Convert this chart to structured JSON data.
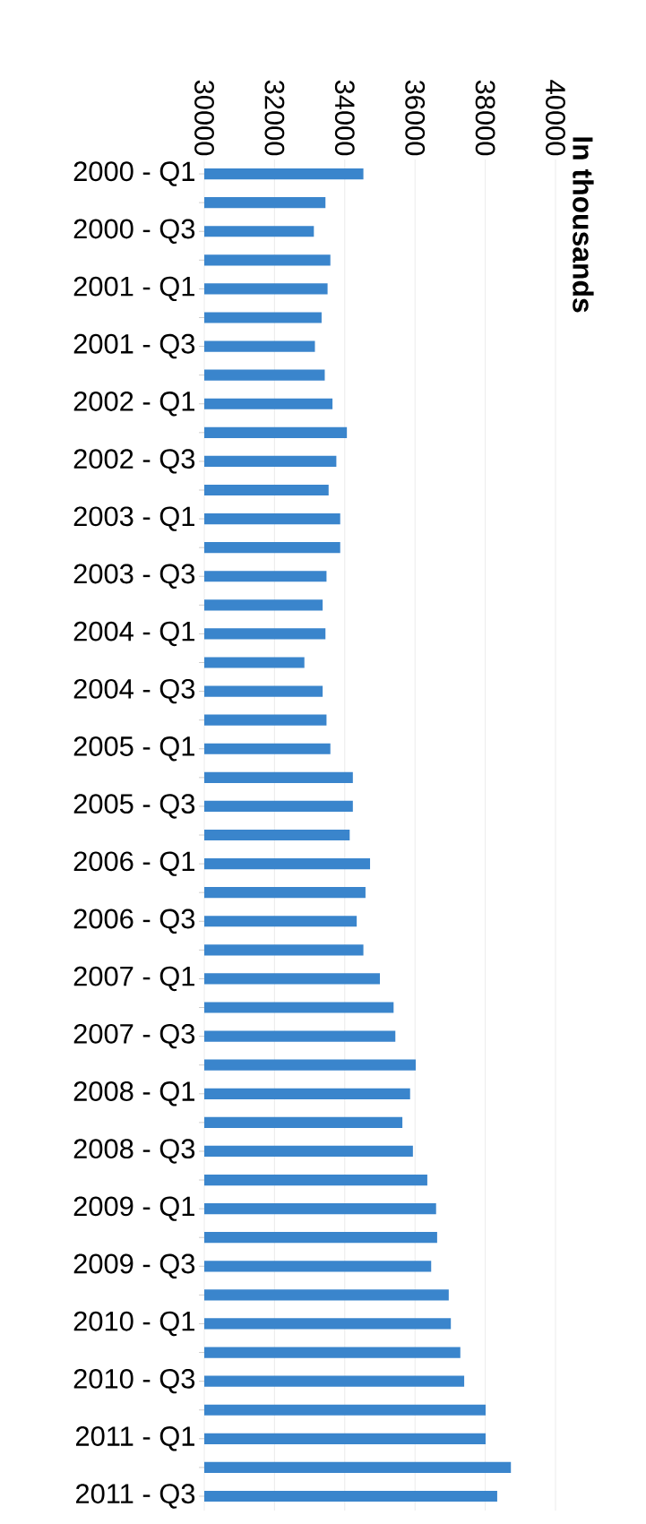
{
  "chart_data": {
    "type": "bar",
    "orientation": "horizontal",
    "annotations": [
      "In thousands"
    ],
    "categories": [
      "2000 - Q1",
      null,
      "2000 - Q3",
      null,
      "2001 - Q1",
      null,
      "2001 - Q3",
      null,
      "2002 - Q1",
      null,
      "2002 - Q3",
      null,
      "2003 - Q1",
      null,
      "2003 - Q3",
      null,
      "2004 - Q1",
      null,
      "2004 - Q3",
      null,
      "2005 - Q1",
      null,
      "2005 - Q3",
      null,
      "2006 - Q1",
      null,
      "2006 - Q3",
      null,
      "2007 - Q1",
      null,
      "2007 - Q3",
      null,
      "2008 - Q1",
      null,
      "2008 - Q3",
      null,
      "2009 - Q1",
      null,
      "2009 - Q3",
      null,
      "2010 - Q1",
      null,
      "2010 - Q3",
      null,
      "2011 - Q1",
      null,
      "2011 - Q3"
    ],
    "values": [
      34530,
      33450,
      33120,
      33590,
      33510,
      33340,
      33150,
      33430,
      33650,
      34060,
      33760,
      33540,
      33870,
      33870,
      33480,
      33370,
      33450,
      32850,
      33370,
      33480,
      33590,
      34230,
      34230,
      34140,
      34720,
      34590,
      34340,
      34530,
      35000,
      35390,
      35440,
      36020,
      35860,
      35640,
      35940,
      36350,
      36600,
      36630,
      36460,
      36960,
      37020,
      37290,
      37400,
      38010,
      38010,
      38730,
      38340
    ],
    "color": "#3a85cc",
    "xlim": [
      30000,
      40000
    ],
    "xticks": [
      30000,
      32000,
      34000,
      36000,
      38000,
      40000
    ],
    "grid": "x"
  }
}
